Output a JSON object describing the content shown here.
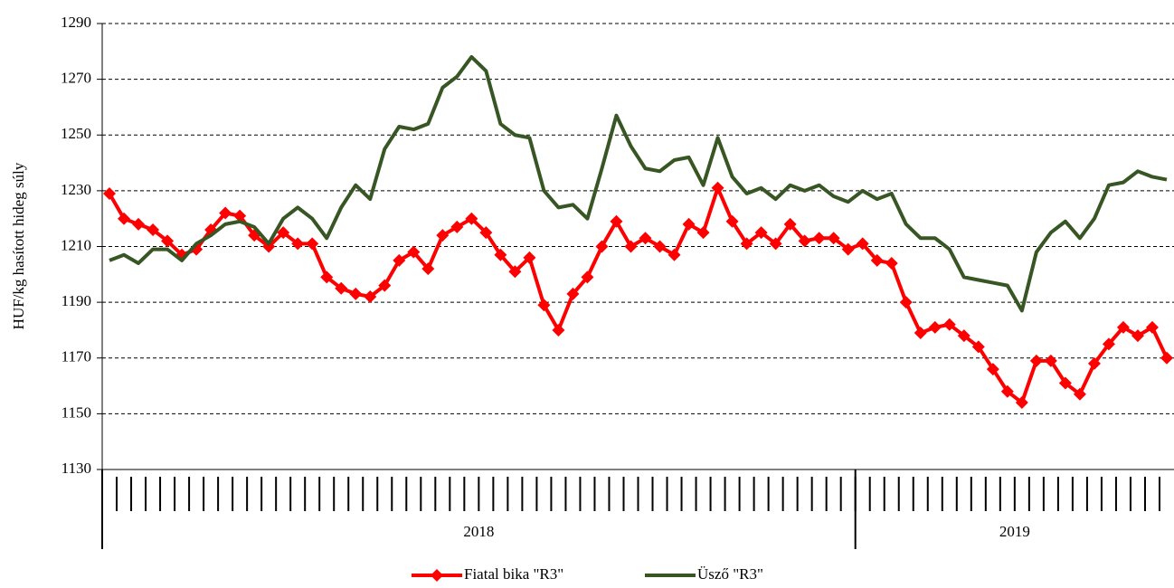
{
  "chart_data": {
    "type": "line",
    "ylabel": "HUF/kg hasított hideg súly",
    "categories": [
      null,
      null,
      null,
      null,
      null,
      null,
      null,
      null,
      null,
      null,
      null,
      null,
      null,
      null,
      null,
      null,
      null,
      null,
      null,
      null,
      null,
      null,
      null,
      null,
      null,
      null,
      null,
      null,
      null,
      null,
      null,
      null,
      null,
      null,
      null,
      null,
      null,
      null,
      null,
      null,
      null,
      null,
      null,
      null,
      null,
      null,
      null,
      null,
      null,
      null,
      null,
      null,
      null,
      null,
      null,
      null,
      null,
      null,
      null,
      null,
      null,
      null,
      null,
      null,
      null,
      null,
      null,
      null,
      null,
      null,
      null,
      null,
      null,
      null
    ],
    "groups": [
      {
        "label": "2018",
        "count": 52
      },
      {
        "label": "2019",
        "count": 22
      }
    ],
    "series": [
      {
        "name": "Fiatal bika \"R3\"",
        "color": "#ff0000",
        "marker": "diamond",
        "values": [
          1229,
          1220,
          1218,
          1216,
          1212,
          1207,
          1209,
          1216,
          1222,
          1221,
          1214,
          1210,
          1215,
          1211,
          1211,
          1199,
          1195,
          1193,
          1192,
          1196,
          1205,
          1208,
          1202,
          1214,
          1217,
          1220,
          1215,
          1207,
          1201,
          1206,
          1189,
          1180,
          1193,
          1199,
          1210,
          1219,
          1210,
          1213,
          1210,
          1207,
          1218,
          1215,
          1231,
          1219,
          1211,
          1215,
          1211,
          1218,
          1212,
          1213,
          1213,
          1209,
          1211,
          1205,
          1204,
          1190,
          1179,
          1181,
          1182,
          1178,
          1174,
          1166,
          1158,
          1154,
          1169,
          1169,
          1161,
          1157,
          1168,
          1175,
          1181,
          1178,
          1181,
          1170
        ]
      },
      {
        "name": "Üsző \"R3\"",
        "color": "#375623",
        "values": [
          1205,
          1207,
          1204,
          1209,
          1209,
          1205,
          1211,
          1214,
          1218,
          1219,
          1217,
          1211,
          1220,
          1224,
          1220,
          1213,
          1224,
          1232,
          1227,
          1245,
          1253,
          1252,
          1254,
          1267,
          1271,
          1278,
          1273,
          1254,
          1250,
          1249,
          1230,
          1224,
          1225,
          1220,
          1238,
          1257,
          1246,
          1238,
          1237,
          1241,
          1242,
          1232,
          1249,
          1235,
          1229,
          1231,
          1227,
          1232,
          1230,
          1232,
          1228,
          1226,
          1230,
          1227,
          1229,
          1218,
          1213,
          1213,
          1209,
          1199,
          1198,
          1197,
          1196,
          1187,
          1208,
          1215,
          1219,
          1213,
          1220,
          1232,
          1233,
          1237,
          1235,
          1234
        ]
      }
    ],
    "ylim": [
      1130,
      1290
    ],
    "yticks": [
      1130,
      1150,
      1170,
      1190,
      1210,
      1230,
      1250,
      1270,
      1290
    ],
    "grid": true,
    "legend": "bottom"
  }
}
